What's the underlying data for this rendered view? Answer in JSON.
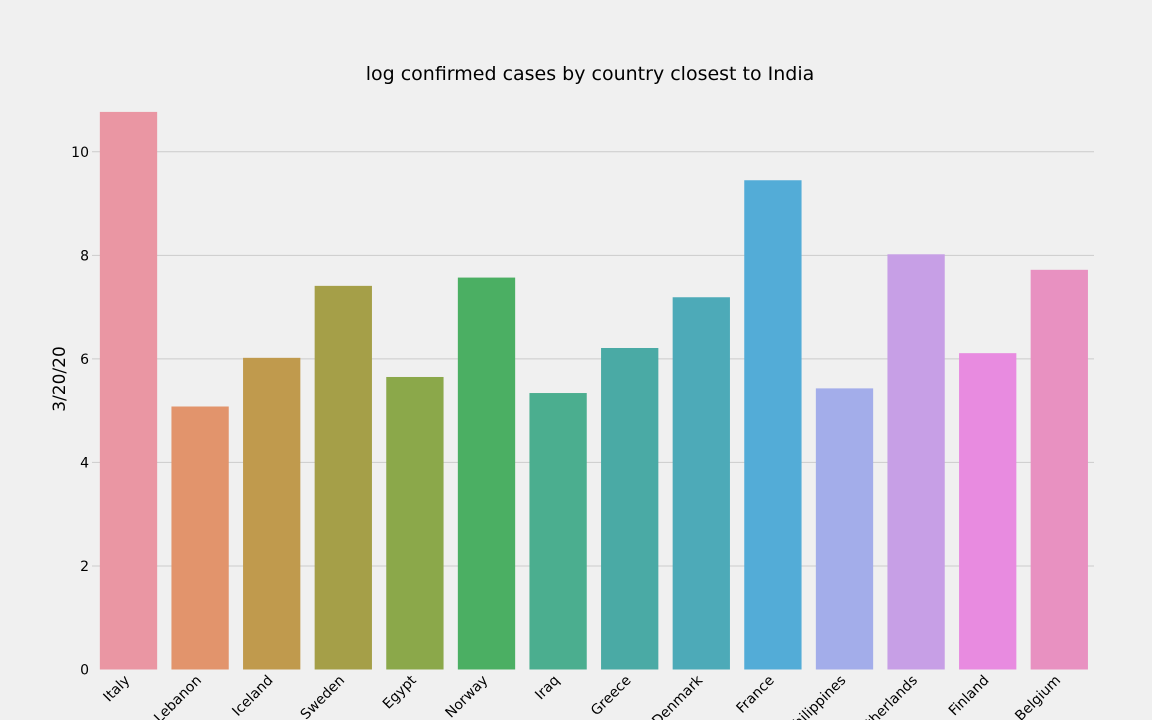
{
  "chart_data": {
    "type": "bar",
    "title": "log confirmed cases by country closest to India",
    "xlabel": "",
    "ylabel": "3/20/20",
    "categories": [
      "Italy",
      "Lebanon",
      "Iceland",
      "Sweden",
      "Egypt",
      "Norway",
      "Iraq",
      "Greece",
      "Denmark",
      "France",
      "Philippines",
      "Netherlands",
      "Finland",
      "Belgium"
    ],
    "values": [
      10.77,
      5.08,
      6.02,
      7.41,
      5.65,
      7.57,
      5.34,
      6.21,
      7.19,
      9.45,
      5.43,
      8.02,
      6.11,
      7.72
    ],
    "colors": [
      "#ea96a3",
      "#e2946c",
      "#c09a4d",
      "#a59f48",
      "#8ba84a",
      "#4baf63",
      "#4bae8f",
      "#4aaaa5",
      "#4daab8",
      "#53acd7",
      "#a3adea",
      "#c79fe6",
      "#e88be0",
      "#e891c1"
    ],
    "ylim": [
      0,
      11
    ],
    "yticks": [
      0,
      2,
      4,
      6,
      8,
      10
    ],
    "grid": true,
    "grid_color": "#cbcbcb",
    "background_color": "#f0f0f0"
  }
}
